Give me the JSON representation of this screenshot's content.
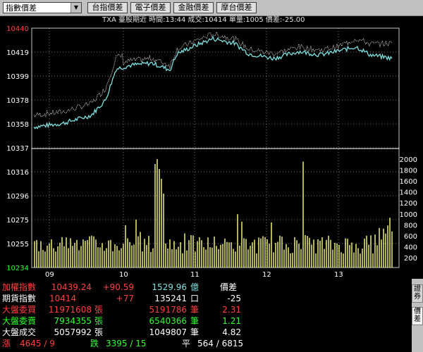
{
  "toolbar": {
    "dropdown_value": "指數價差",
    "buttons": [
      "台指價差",
      "電子價差",
      "金融價差",
      "摩台價差"
    ]
  },
  "info_line": "TXA  臺股期近 時間:13:44 成交:10414 單量:1005 價差:-25.00",
  "price_axis": [
    "10440",
    "10419",
    "10399",
    "10378",
    "10358",
    "10337",
    "10316",
    "10296",
    "10275",
    "10255",
    "10234"
  ],
  "volume_axis": [
    "2000",
    "1800",
    "1600",
    "1400",
    "1200",
    "1000",
    "800",
    "600",
    "400",
    "200"
  ],
  "time_axis": [
    "09",
    "10",
    "11",
    "12",
    "13"
  ],
  "colors": {
    "up": "#ff3030",
    "down": "#30ff30",
    "neutral": "#ffffff",
    "cyan": "#7fe0e0",
    "yellow": "#ffff80"
  },
  "panel": {
    "r1": {
      "label": "加權指數",
      "value": "10439.24",
      "change": "+90.59",
      "amount": "1529.96",
      "unit": "億",
      "extra": "價差"
    },
    "r2": {
      "label": "期貨指數",
      "value": "10414",
      "change": "+77",
      "amount": "135241",
      "unit": "口",
      "extra": "-25"
    },
    "r3": {
      "label": "大盤委買",
      "value": "11971608",
      "unit1": "張",
      "amount": "5191786",
      "unit2": "筆",
      "extra": "2.31"
    },
    "r4": {
      "label": "大盤委賣",
      "value": "7934355",
      "unit1": "張",
      "amount": "6540366",
      "unit2": "筆",
      "extra": "1.21"
    },
    "r5": {
      "label": "大盤成交",
      "value": "5057992",
      "unit1": "張",
      "amount": "1049807",
      "unit2": "筆",
      "extra": "4.82"
    },
    "r6": {
      "up_label": "漲",
      "up": "4645 / 9",
      "down_label": "跌",
      "down": "3395 / 15",
      "flat_label": "平",
      "flat": "564 / 6815"
    }
  },
  "side_tabs": [
    "證券",
    "價差"
  ]
}
